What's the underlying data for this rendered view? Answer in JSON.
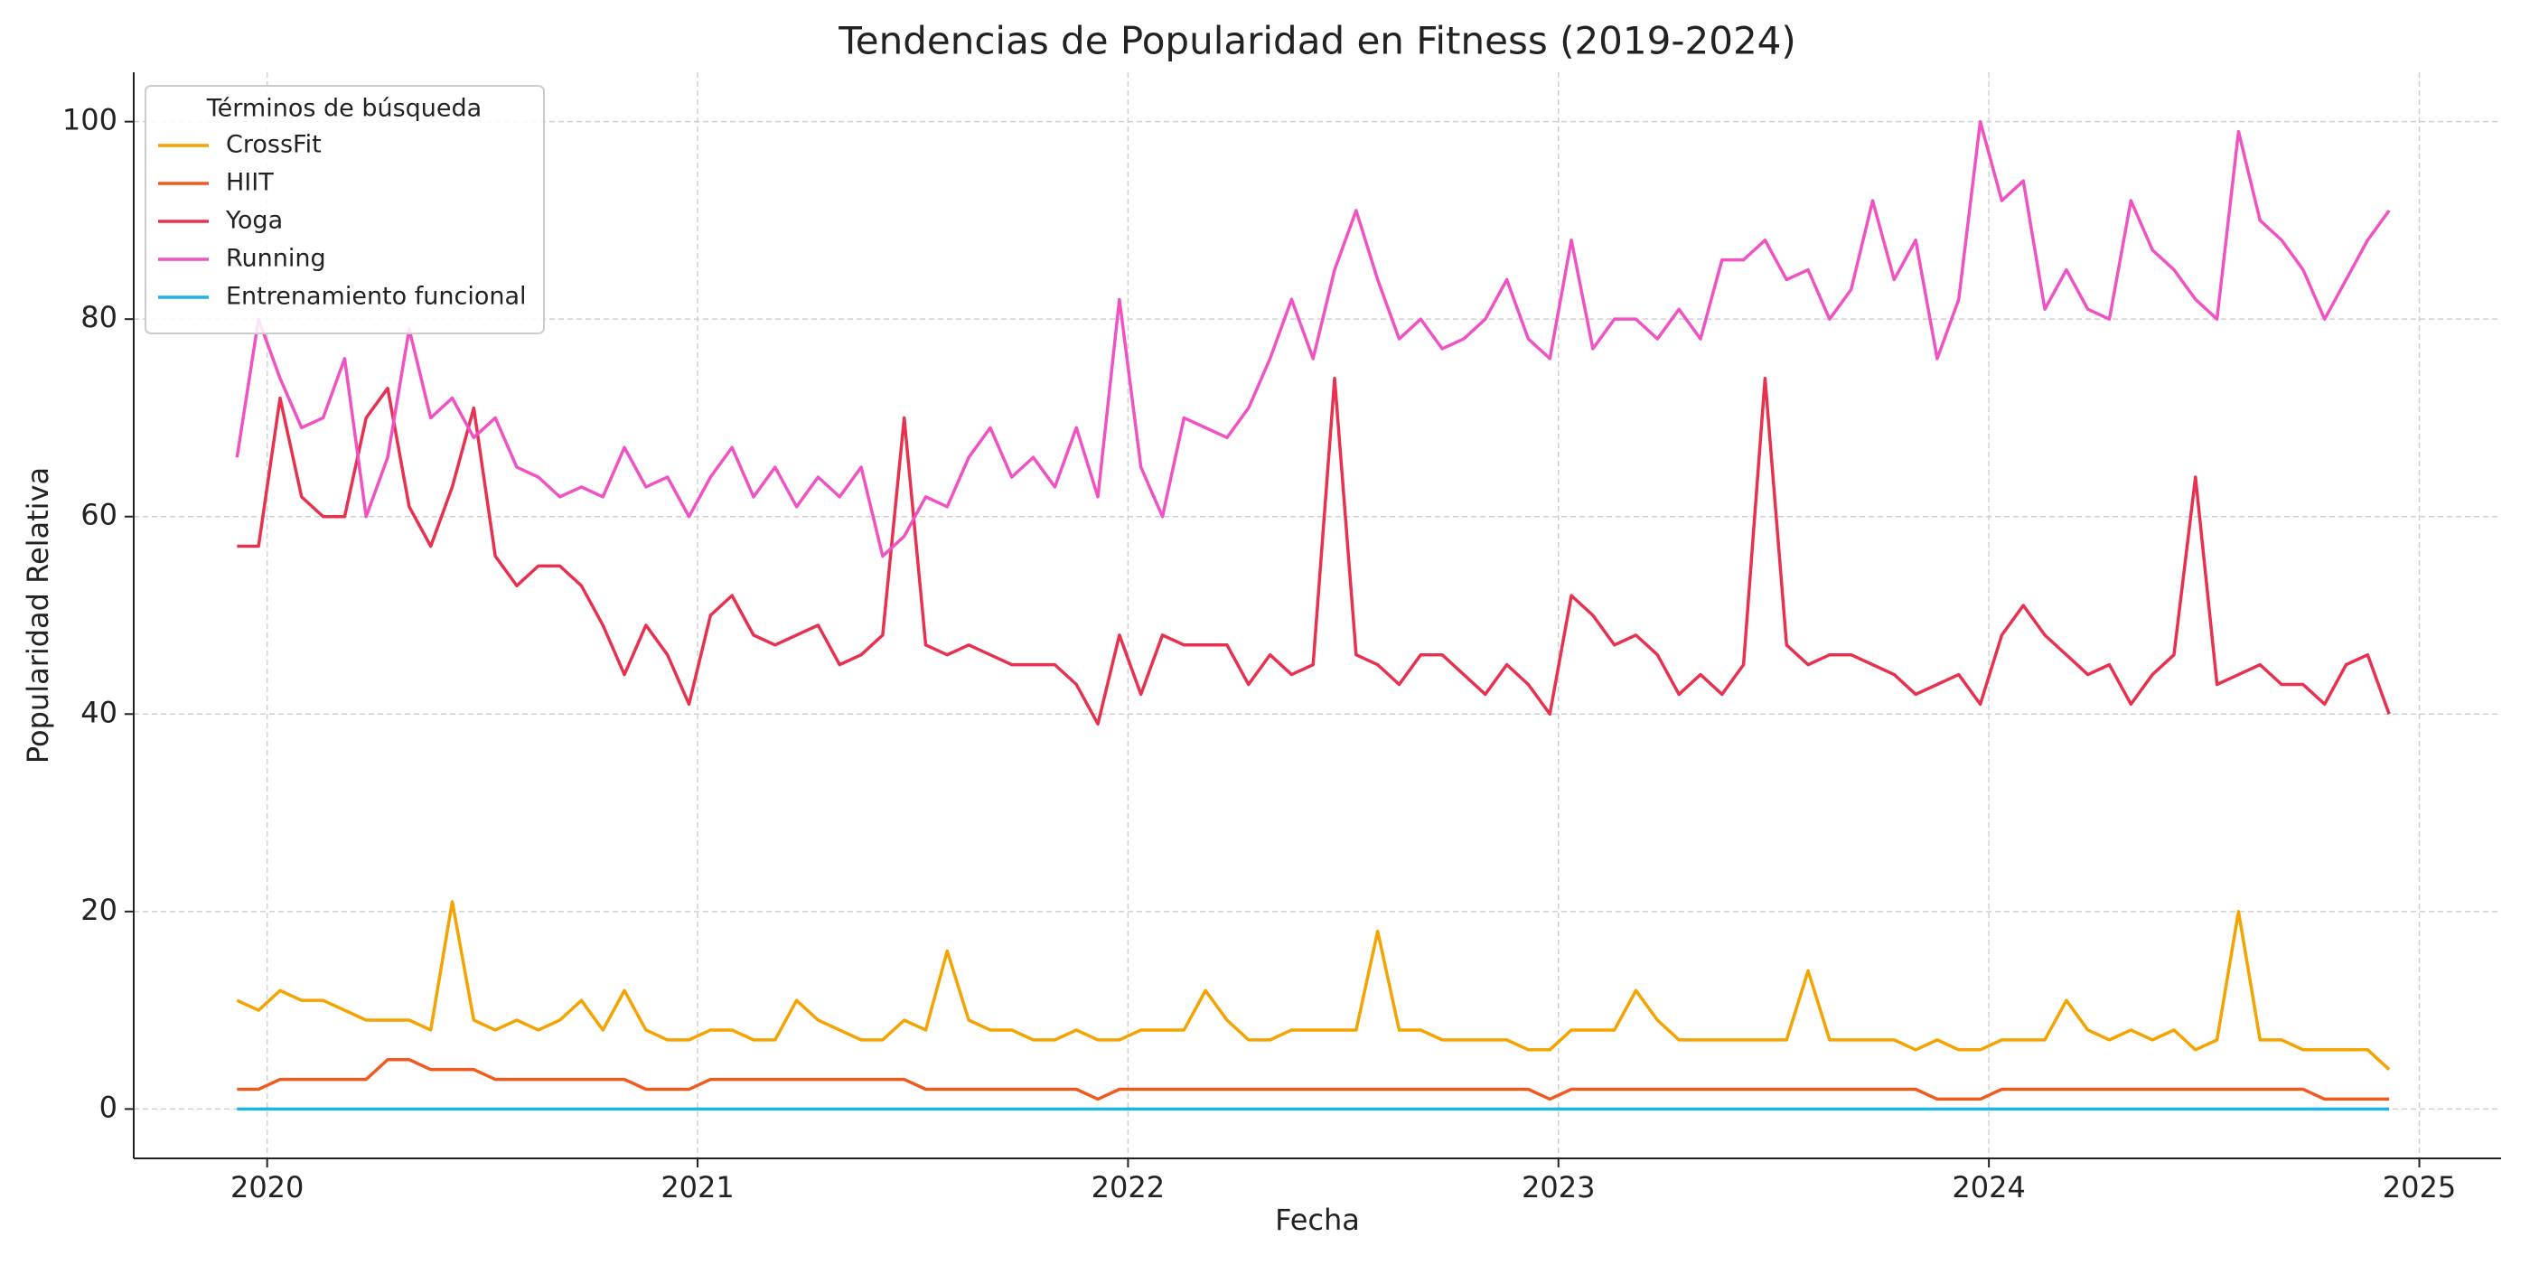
{
  "chart_data": {
    "type": "line",
    "title": "Tendencias de Popularidad en Fitness (2019-2024)",
    "xlabel": "Fecha",
    "ylabel": "Popularidad Relativa",
    "legend_title": "Términos de búsqueda",
    "legend": "upper left",
    "grid": true,
    "xlim": [
      2019.69,
      2025.19
    ],
    "xticks": [
      2020,
      2021,
      2022,
      2023,
      2024,
      2025
    ],
    "ylim": [
      -5,
      105
    ],
    "yticks": [
      0,
      20,
      40,
      60,
      80,
      100
    ],
    "x": [
      2019.93,
      2019.98,
      2020.03,
      2020.08,
      2020.13,
      2020.18,
      2020.23,
      2020.28,
      2020.33,
      2020.38,
      2020.43,
      2020.48,
      2020.53,
      2020.58,
      2020.63,
      2020.68,
      2020.73,
      2020.78,
      2020.83,
      2020.88,
      2020.93,
      2020.98,
      2021.03,
      2021.08,
      2021.13,
      2021.18,
      2021.23,
      2021.28,
      2021.33,
      2021.38,
      2021.43,
      2021.48,
      2021.53,
      2021.58,
      2021.63,
      2021.68,
      2021.73,
      2021.78,
      2021.83,
      2021.88,
      2021.93,
      2021.98,
      2022.03,
      2022.08,
      2022.13,
      2022.18,
      2022.23,
      2022.28,
      2022.33,
      2022.38,
      2022.43,
      2022.48,
      2022.53,
      2022.58,
      2022.63,
      2022.68,
      2022.73,
      2022.78,
      2022.83,
      2022.88,
      2022.93,
      2022.98,
      2023.03,
      2023.08,
      2023.13,
      2023.18,
      2023.23,
      2023.28,
      2023.33,
      2023.38,
      2023.43,
      2023.48,
      2023.53,
      2023.58,
      2023.63,
      2023.68,
      2023.73,
      2023.78,
      2023.83,
      2023.88,
      2023.93,
      2023.98,
      2024.03,
      2024.08,
      2024.13,
      2024.18,
      2024.23,
      2024.28,
      2024.33,
      2024.38,
      2024.43,
      2024.48,
      2024.53,
      2024.58,
      2024.63,
      2024.68,
      2024.73,
      2024.78,
      2024.83,
      2024.88,
      2024.93
    ],
    "series": [
      {
        "name": "CrossFit",
        "color": "#f5a300",
        "values": [
          11,
          10,
          12,
          11,
          11,
          10,
          9,
          9,
          9,
          8,
          21,
          9,
          8,
          9,
          8,
          9,
          11,
          8,
          12,
          8,
          7,
          7,
          8,
          8,
          7,
          7,
          11,
          9,
          8,
          7,
          7,
          9,
          8,
          16,
          9,
          8,
          8,
          7,
          7,
          8,
          7,
          7,
          8,
          8,
          8,
          12,
          9,
          7,
          7,
          8,
          8,
          8,
          8,
          18,
          8,
          8,
          7,
          7,
          7,
          7,
          6,
          6,
          8,
          8,
          8,
          12,
          9,
          7,
          7,
          7,
          7,
          7,
          7,
          14,
          7,
          7,
          7,
          7,
          6,
          7,
          6,
          6,
          7,
          7,
          7,
          11,
          8,
          7,
          8,
          7,
          8,
          6,
          7,
          20,
          7,
          7,
          6,
          6,
          6,
          6,
          4
        ]
      },
      {
        "name": "HIIT",
        "color": "#f15a1f",
        "values": [
          2,
          2,
          3,
          3,
          3,
          3,
          3,
          5,
          5,
          4,
          4,
          4,
          3,
          3,
          3,
          3,
          3,
          3,
          3,
          2,
          2,
          2,
          3,
          3,
          3,
          3,
          3,
          3,
          3,
          3,
          3,
          3,
          2,
          2,
          2,
          2,
          2,
          2,
          2,
          2,
          1,
          2,
          2,
          2,
          2,
          2,
          2,
          2,
          2,
          2,
          2,
          2,
          2,
          2,
          2,
          2,
          2,
          2,
          2,
          2,
          2,
          1,
          2,
          2,
          2,
          2,
          2,
          2,
          2,
          2,
          2,
          2,
          2,
          2,
          2,
          2,
          2,
          2,
          2,
          1,
          1,
          1,
          2,
          2,
          2,
          2,
          2,
          2,
          2,
          2,
          2,
          2,
          2,
          2,
          2,
          2,
          2,
          1,
          1,
          1,
          1
        ]
      },
      {
        "name": "Yoga",
        "color": "#e8304f",
        "values": [
          57,
          57,
          72,
          62,
          60,
          60,
          70,
          73,
          61,
          57,
          63,
          71,
          56,
          53,
          55,
          55,
          53,
          49,
          44,
          49,
          46,
          41,
          50,
          52,
          48,
          47,
          48,
          49,
          45,
          46,
          48,
          70,
          47,
          46,
          47,
          46,
          45,
          45,
          45,
          43,
          39,
          48,
          42,
          48,
          47,
          47,
          47,
          43,
          46,
          44,
          45,
          74,
          46,
          45,
          43,
          46,
          46,
          44,
          42,
          45,
          43,
          40,
          52,
          50,
          47,
          48,
          46,
          42,
          44,
          42,
          45,
          74,
          47,
          45,
          46,
          46,
          45,
          44,
          42,
          43,
          44,
          41,
          48,
          51,
          48,
          46,
          44,
          45,
          41,
          44,
          46,
          64,
          43,
          44,
          45,
          43,
          43,
          41,
          45,
          46,
          40
        ]
      },
      {
        "name": "Running",
        "color": "#f052c4",
        "values": [
          66,
          80,
          74,
          69,
          70,
          76,
          60,
          66,
          79,
          70,
          72,
          68,
          70,
          65,
          64,
          62,
          63,
          62,
          67,
          63,
          64,
          60,
          64,
          67,
          62,
          65,
          61,
          64,
          62,
          65,
          56,
          58,
          62,
          61,
          66,
          69,
          64,
          66,
          63,
          69,
          62,
          82,
          65,
          60,
          70,
          69,
          68,
          71,
          76,
          82,
          76,
          85,
          91,
          84,
          78,
          80,
          77,
          78,
          80,
          84,
          78,
          76,
          88,
          77,
          80,
          80,
          78,
          81,
          78,
          86,
          86,
          88,
          84,
          85,
          80,
          83,
          92,
          84,
          88,
          76,
          82,
          100,
          92,
          94,
          81,
          85,
          81,
          80,
          92,
          87,
          85,
          82,
          80,
          99,
          90,
          88,
          85,
          80,
          84,
          88,
          91
        ]
      },
      {
        "name": "Entrenamiento funcional",
        "color": "#1db4e6",
        "values": [
          0,
          0,
          0,
          0,
          0,
          0,
          0,
          0,
          0,
          0,
          0,
          0,
          0,
          0,
          0,
          0,
          0,
          0,
          0,
          0,
          0,
          0,
          0,
          0,
          0,
          0,
          0,
          0,
          0,
          0,
          0,
          0,
          0,
          0,
          0,
          0,
          0,
          0,
          0,
          0,
          0,
          0,
          0,
          0,
          0,
          0,
          0,
          0,
          0,
          0,
          0,
          0,
          0,
          0,
          0,
          0,
          0,
          0,
          0,
          0,
          0,
          0,
          0,
          0,
          0,
          0,
          0,
          0,
          0,
          0,
          0,
          0,
          0,
          0,
          0,
          0,
          0,
          0,
          0,
          0,
          0,
          0,
          0,
          0,
          0,
          0,
          0,
          0,
          0,
          0,
          0,
          0,
          0,
          0,
          0,
          0,
          0,
          0,
          0,
          0,
          0
        ]
      }
    ]
  }
}
